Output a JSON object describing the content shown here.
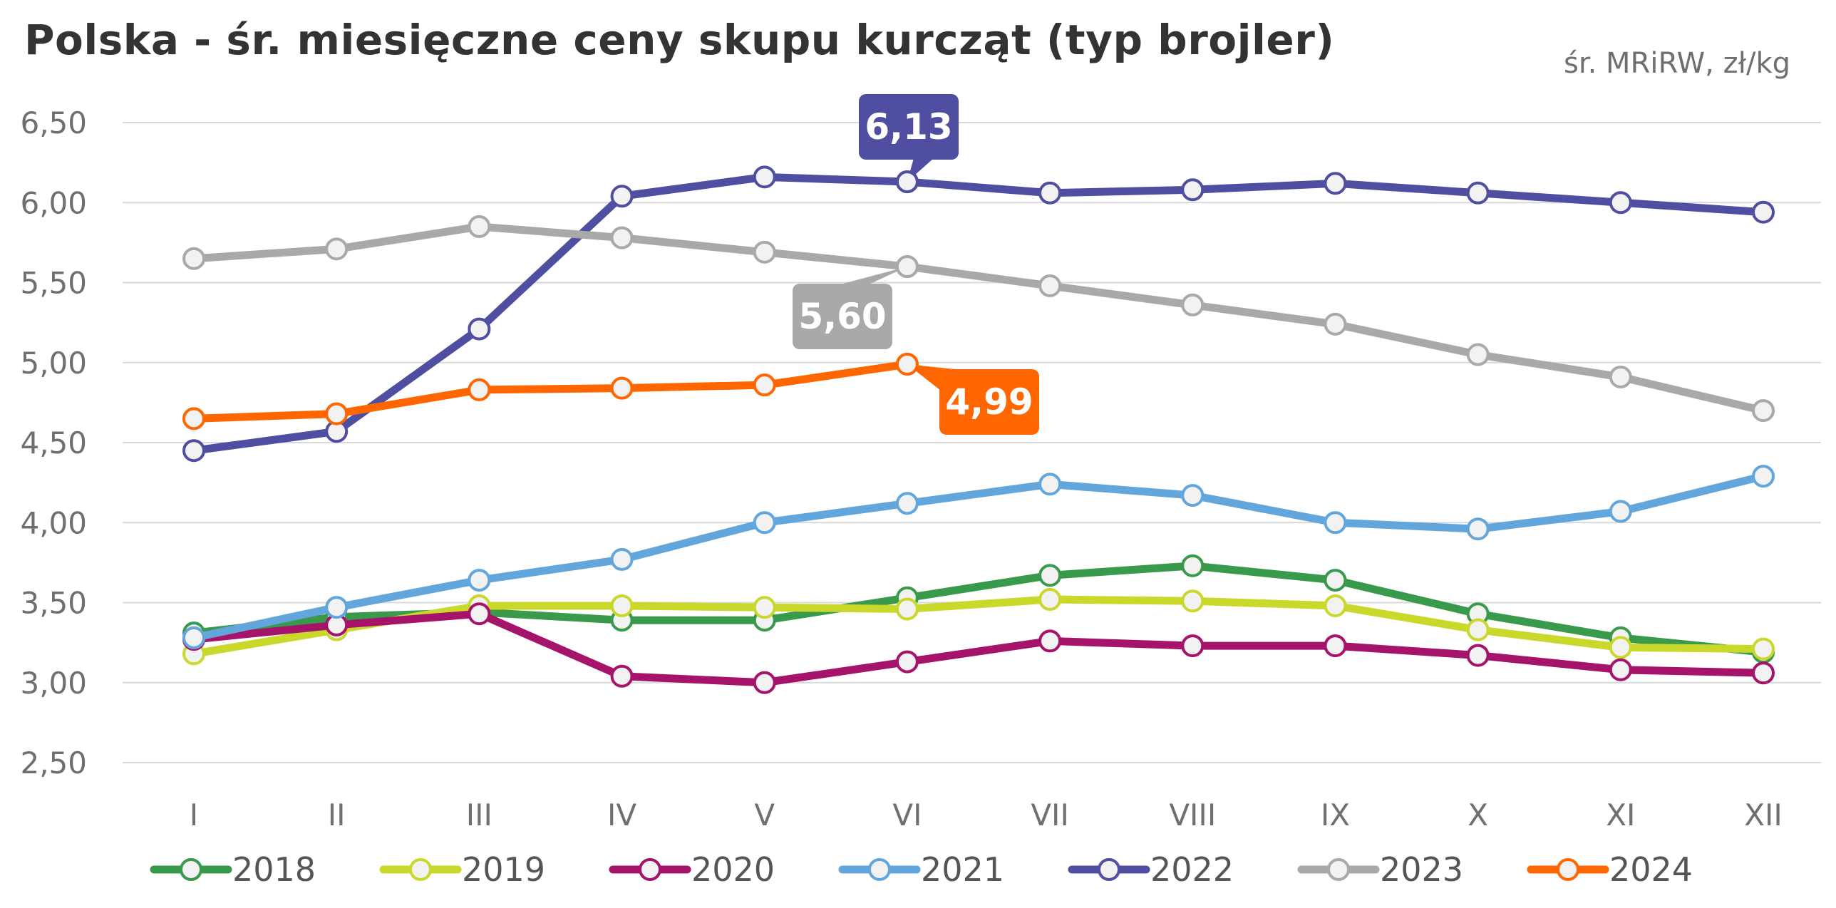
{
  "chart_data": {
    "type": "line",
    "title": "Polska - śr. miesięczne ceny skupu kurcząt (typ brojler)",
    "unit_note": "śr. MRiRW, zł/kg",
    "categories": [
      "I",
      "II",
      "III",
      "IV",
      "V",
      "VI",
      "VII",
      "VIII",
      "IX",
      "X",
      "XI",
      "XII"
    ],
    "ylim": [
      2.5,
      6.5
    ],
    "yticks": [
      "2,50",
      "3,00",
      "3,50",
      "4,00",
      "4,50",
      "5,00",
      "5,50",
      "6,00",
      "6,50"
    ],
    "ytick_values": [
      2.5,
      3.0,
      3.5,
      4.0,
      4.5,
      5.0,
      5.5,
      6.0,
      6.5
    ],
    "grid": true,
    "legend_position": "bottom",
    "series": [
      {
        "name": "2018",
        "color": "#3a9a4c",
        "values": [
          3.31,
          3.41,
          3.44,
          3.39,
          3.39,
          3.53,
          3.67,
          3.73,
          3.64,
          3.43,
          3.28,
          3.19
        ]
      },
      {
        "name": "2019",
        "color": "#c9d82a",
        "values": [
          3.18,
          3.33,
          3.48,
          3.48,
          3.47,
          3.46,
          3.52,
          3.51,
          3.48,
          3.33,
          3.22,
          3.21
        ]
      },
      {
        "name": "2020",
        "color": "#a5136b",
        "values": [
          3.27,
          3.36,
          3.43,
          3.04,
          3.0,
          3.13,
          3.26,
          3.23,
          3.23,
          3.17,
          3.08,
          3.06
        ]
      },
      {
        "name": "2021",
        "color": "#63a6dc",
        "values": [
          3.28,
          3.47,
          3.64,
          3.77,
          4.0,
          4.12,
          4.24,
          4.17,
          4.0,
          3.96,
          4.07,
          4.29
        ]
      },
      {
        "name": "2022",
        "color": "#4f4ea0",
        "values": [
          4.45,
          4.57,
          5.21,
          6.04,
          6.16,
          6.13,
          6.06,
          6.08,
          6.12,
          6.06,
          6.0,
          5.94
        ]
      },
      {
        "name": "2023",
        "color": "#a9a9a9",
        "values": [
          5.65,
          5.71,
          5.85,
          5.78,
          5.69,
          5.6,
          5.48,
          5.36,
          5.24,
          5.05,
          4.91,
          4.7
        ]
      },
      {
        "name": "2024",
        "color": "#ff6600",
        "values": [
          4.65,
          4.68,
          4.83,
          4.84,
          4.86,
          4.99,
          null,
          null,
          null,
          null,
          null,
          null
        ]
      }
    ],
    "annotations": [
      {
        "series": "2022",
        "category": "VI",
        "text": "6,13",
        "color": "#4f4ea0"
      },
      {
        "series": "2023",
        "category": "VI",
        "text": "5,60",
        "color": "#a9a9a9"
      },
      {
        "series": "2024",
        "category": "VI",
        "text": "4,99",
        "color": "#ff6600"
      }
    ]
  }
}
